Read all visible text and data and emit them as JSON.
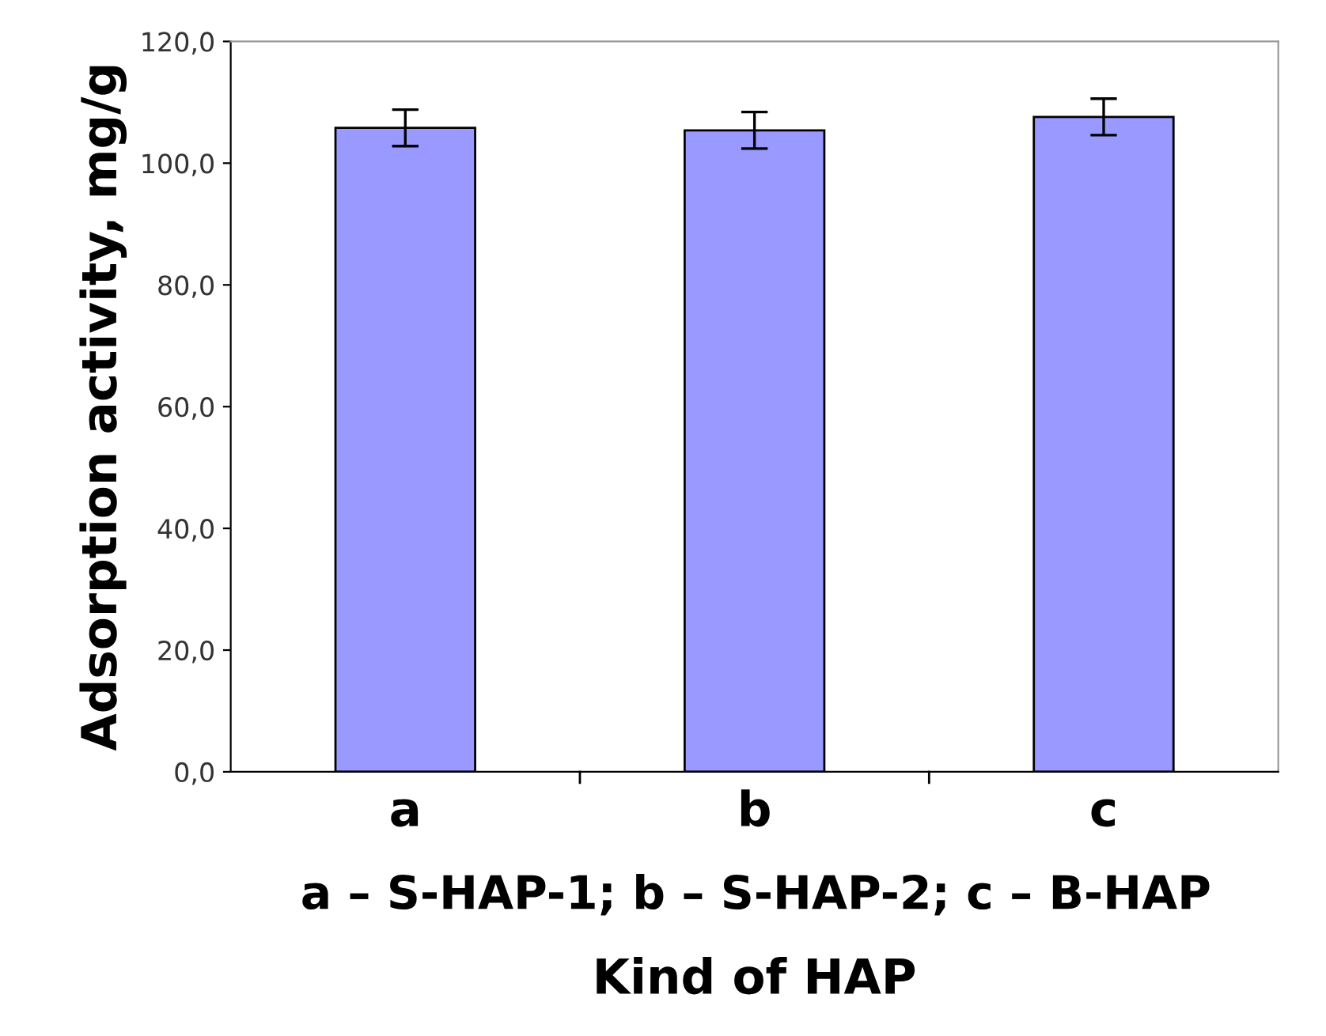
{
  "chart_data": {
    "type": "bar",
    "categories": [
      "a",
      "b",
      "c"
    ],
    "values": [
      105.8,
      105.4,
      107.6
    ],
    "errors": [
      3,
      3,
      3
    ],
    "color": "#9999ff",
    "ylim": [
      0,
      120
    ],
    "yticks": [
      {
        "value": 0,
        "label": "0,0"
      },
      {
        "value": 20,
        "label": "20,0"
      },
      {
        "value": 40,
        "label": "40,0"
      },
      {
        "value": 60,
        "label": "60,0"
      },
      {
        "value": 80,
        "label": "80,0"
      },
      {
        "value": 100,
        "label": "100,0"
      },
      {
        "value": 120,
        "label": "120,0"
      }
    ],
    "ylabel": "Adsorption activity, mg/g",
    "xlabel": "Kind of HAP",
    "annotations": [
      "a – S-HAP-1; b – S-HAP-2; c – B-HAP"
    ],
    "grid": false,
    "legend": false
  }
}
